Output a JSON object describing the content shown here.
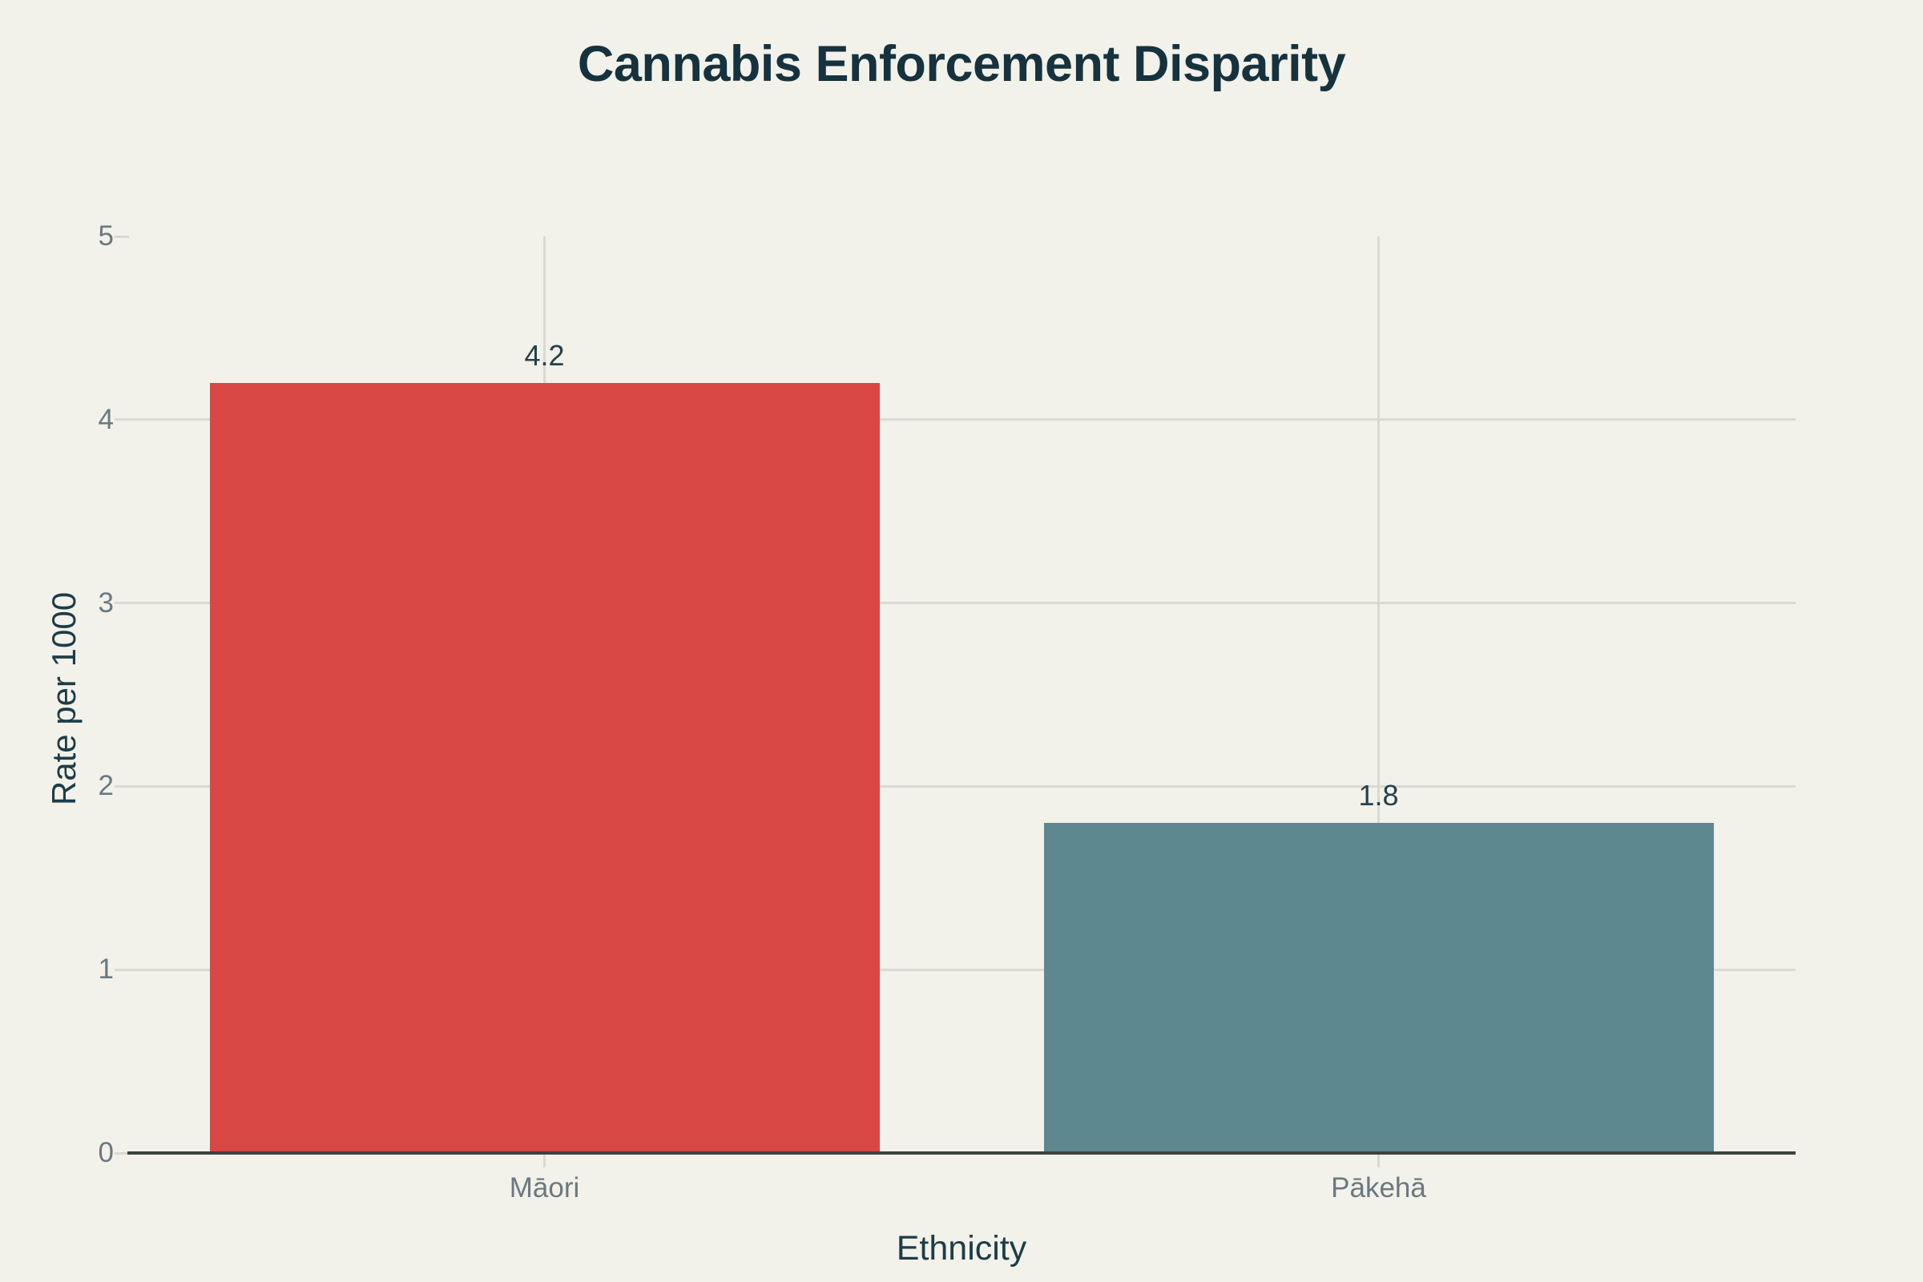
{
  "chart_data": {
    "type": "bar",
    "title": "Cannabis Enforcement Disparity",
    "xlabel": "Ethnicity",
    "ylabel": "Rate per 1000",
    "categories": [
      "Māori",
      "Pākehā"
    ],
    "values": [
      4.2,
      1.8
    ],
    "data_labels": [
      "4.2",
      "1.8"
    ],
    "bar_colors": [
      "#d84743",
      "#5d8890"
    ],
    "ylim": [
      0,
      5
    ],
    "yticks": [
      0,
      1,
      2,
      3,
      4,
      5
    ],
    "ytick_labels": [
      "0",
      "1",
      "2",
      "3",
      "4",
      "5"
    ],
    "grid": "horizontal gridlines at 1-4, vertical gridline at each category center",
    "legend_position": "none"
  },
  "colors": {
    "background": "#f2f1ea",
    "title_text": "#16323e",
    "axis_title_text": "#1d3d47",
    "tick_label_text": "#6b7880",
    "data_label_text": "#24414c",
    "gridline": "#dbd9d1",
    "axis_line": "#3c423f"
  }
}
